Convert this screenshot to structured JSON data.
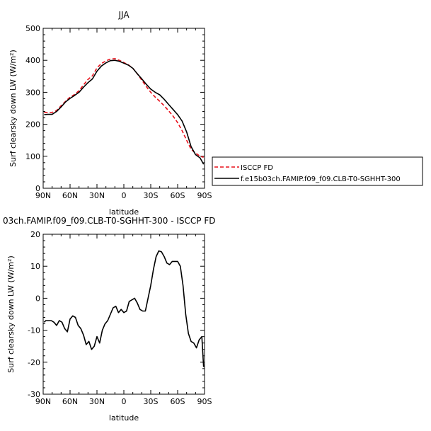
{
  "chart_data": [
    {
      "type": "line",
      "title": "JJA",
      "xlabel": "latitude",
      "ylabel": "Surf clearsky down LW (W/m²)",
      "xlim": [
        -90,
        90
      ],
      "ylim": [
        0,
        500
      ],
      "xticks": [
        {
          "v": -90,
          "label": "90N"
        },
        {
          "v": -60,
          "label": "60N"
        },
        {
          "v": -30,
          "label": "30N"
        },
        {
          "v": 0,
          "label": "0"
        },
        {
          "v": 30,
          "label": "30S"
        },
        {
          "v": 60,
          "label": "60S"
        },
        {
          "v": 90,
          "label": "90S"
        }
      ],
      "yticks": [
        0,
        100,
        200,
        300,
        400,
        500
      ],
      "legend_position": "right",
      "series": [
        {
          "name": "ISCCP FD",
          "color": "#e8101a",
          "dash": "dashed",
          "x": [
            -89,
            -80,
            -75,
            -70,
            -65,
            -60,
            -55,
            -50,
            -45,
            -40,
            -35,
            -30,
            -25,
            -20,
            -15,
            -10,
            -5,
            0,
            5,
            10,
            15,
            20,
            25,
            30,
            35,
            40,
            45,
            50,
            55,
            60,
            65,
            70,
            75,
            80,
            85,
            89
          ],
          "values": [
            237,
            237,
            243,
            258,
            272,
            285,
            293,
            305,
            323,
            340,
            352,
            376,
            390,
            398,
            404,
            405,
            400,
            393,
            386,
            375,
            358,
            338,
            318,
            300,
            285,
            272,
            258,
            242,
            225,
            205,
            180,
            150,
            122,
            110,
            100,
            97
          ]
        },
        {
          "name": "f.e15b03ch.FAMIP.f09_f09.CLB-T0-SGHHT-300",
          "color": "#000000",
          "dash": "solid",
          "x": [
            -89,
            -85,
            -80,
            -75,
            -70,
            -65,
            -60,
            -55,
            -50,
            -45,
            -40,
            -35,
            -30,
            -25,
            -20,
            -15,
            -10,
            -5,
            0,
            5,
            10,
            15,
            20,
            25,
            30,
            35,
            40,
            45,
            50,
            55,
            60,
            65,
            70,
            75,
            80,
            85,
            89
          ],
          "values": [
            230,
            231,
            231,
            240,
            254,
            270,
            281,
            290,
            300,
            316,
            330,
            342,
            366,
            382,
            392,
            399,
            400,
            397,
            391,
            385,
            375,
            358,
            342,
            325,
            310,
            300,
            292,
            278,
            262,
            246,
            230,
            210,
            176,
            130,
            105,
            95,
            75
          ]
        }
      ]
    },
    {
      "type": "line",
      "title": "03ch.FAMIP.f09_f09.CLB-T0-SGHHT-300 - ISCCP FD",
      "xlabel": "latitude",
      "ylabel": "Surf clearsky down LW (W/m²)",
      "xlim": [
        -90,
        90
      ],
      "ylim": [
        -30,
        20
      ],
      "xticks": [
        {
          "v": -90,
          "label": "90N"
        },
        {
          "v": -60,
          "label": "60N"
        },
        {
          "v": -30,
          "label": "30N"
        },
        {
          "v": 0,
          "label": "0"
        },
        {
          "v": 30,
          "label": "30S"
        },
        {
          "v": 60,
          "label": "60S"
        },
        {
          "v": 90,
          "label": "90S"
        }
      ],
      "yticks": [
        -30,
        -20,
        -10,
        0,
        10,
        20
      ],
      "series": [
        {
          "color": "#000000",
          "dash": "solid",
          "x": [
            -89,
            -87,
            -84,
            -81,
            -78,
            -75,
            -72,
            -69,
            -66,
            -63,
            -60,
            -57,
            -54,
            -51,
            -48,
            -45,
            -42,
            -39,
            -36,
            -33,
            -30,
            -27,
            -24,
            -21,
            -18,
            -15,
            -12,
            -9,
            -6,
            -3,
            0,
            3,
            6,
            9,
            12,
            15,
            18,
            21,
            24,
            27,
            30,
            33,
            36,
            39,
            42,
            45,
            48,
            51,
            54,
            57,
            60,
            63,
            66,
            69,
            72,
            75,
            78,
            81,
            84,
            87,
            89
          ],
          "values": [
            -7.5,
            -7,
            -7,
            -7,
            -7.5,
            -8.5,
            -7,
            -7.5,
            -9.5,
            -10.5,
            -6.5,
            -5.5,
            -6,
            -8.5,
            -9.5,
            -11.5,
            -14.5,
            -13.5,
            -16,
            -15,
            -12,
            -14,
            -10,
            -8,
            -7,
            -5,
            -3,
            -2.5,
            -4.5,
            -3.5,
            -4.5,
            -4,
            -1,
            -0.5,
            0,
            -1.5,
            -3.5,
            -4,
            -4,
            0,
            4,
            9,
            13,
            14.8,
            14.5,
            13,
            11,
            10.5,
            11.5,
            11.5,
            11.5,
            10,
            4,
            -5,
            -11,
            -13.5,
            -14,
            -15.5,
            -13,
            -12,
            -21.5
          ]
        }
      ]
    }
  ]
}
